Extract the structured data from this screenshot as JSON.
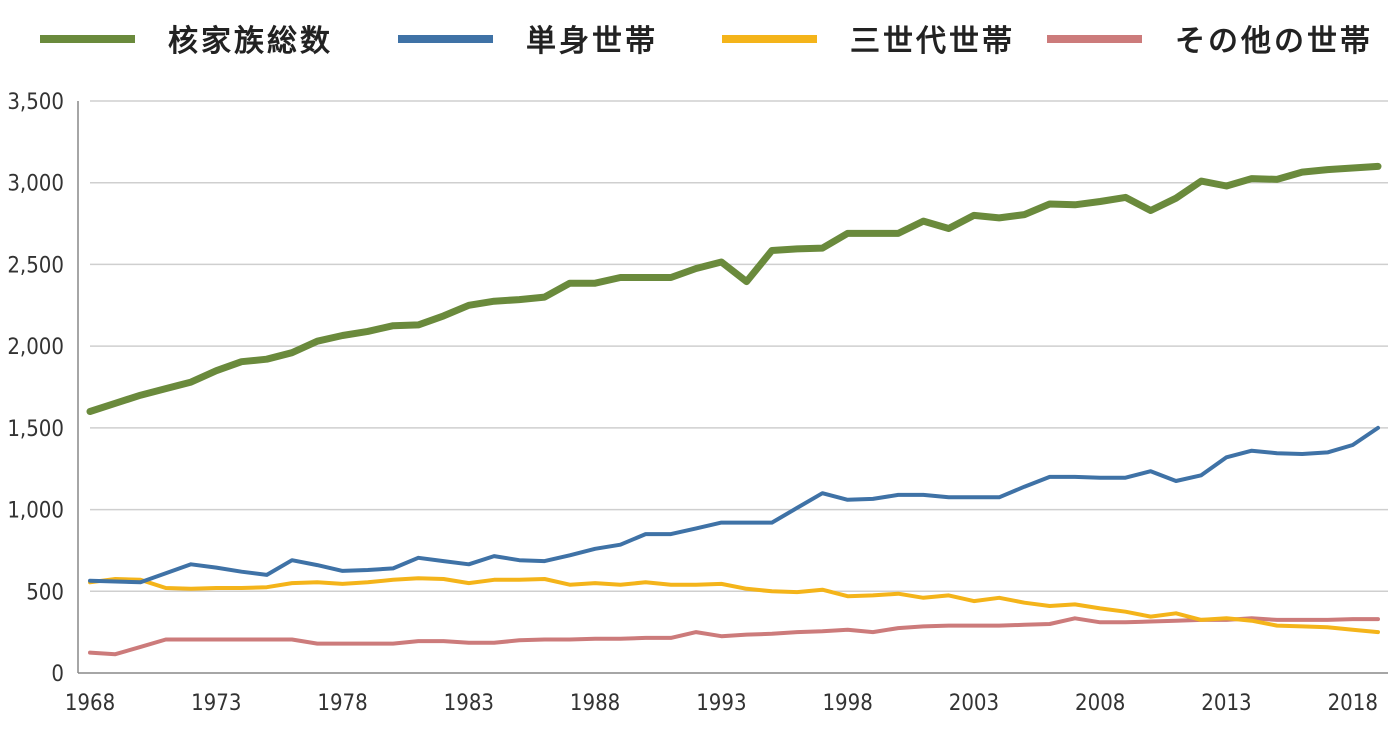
{
  "chart_data": {
    "type": "line",
    "ylim": [
      0,
      3500
    ],
    "yticks": [
      0,
      500,
      1000,
      1500,
      2000,
      2500,
      3000,
      3500
    ],
    "ytick_labels": [
      "0",
      "500",
      "1,000",
      "1,500",
      "2,000",
      "2,500",
      "3,000",
      "3,500"
    ],
    "xlim": [
      1968,
      2019
    ],
    "xticks": [
      1968,
      1973,
      1978,
      1983,
      1988,
      1993,
      1998,
      2003,
      2008,
      2013,
      2018
    ],
    "xtick_labels": [
      "1968",
      "1973",
      "1978",
      "1983",
      "1988",
      "1993",
      "1998",
      "2003",
      "2008",
      "2013",
      "2018"
    ],
    "grid": "horizontal",
    "legend_position": "top",
    "x": [
      1968,
      1969,
      1970,
      1971,
      1972,
      1973,
      1974,
      1975,
      1976,
      1977,
      1978,
      1979,
      1980,
      1981,
      1982,
      1983,
      1984,
      1985,
      1986,
      1987,
      1988,
      1989,
      1990,
      1991,
      1992,
      1993,
      1994,
      1995,
      1996,
      1997,
      1998,
      1999,
      2000,
      2001,
      2002,
      2003,
      2004,
      2005,
      2006,
      2007,
      2008,
      2009,
      2010,
      2011,
      2012,
      2013,
      2014,
      2015,
      2016,
      2017,
      2018,
      2019
    ],
    "series": [
      {
        "name": "核家族総数",
        "color": "#6a8a3c",
        "values": [
          1600,
          1650,
          1700,
          1740,
          1780,
          1850,
          1905,
          1920,
          1960,
          2030,
          2065,
          2090,
          2125,
          2130,
          2185,
          2250,
          2275,
          2285,
          2300,
          2385,
          2385,
          2420,
          2420,
          2420,
          2475,
          2515,
          2395,
          2585,
          2595,
          2600,
          2690,
          2690,
          2690,
          2765,
          2720,
          2800,
          2785,
          2805,
          2870,
          2865,
          2885,
          2910,
          2830,
          2905,
          3010,
          2980,
          3025,
          3020,
          3065,
          3080,
          3090,
          3100
        ]
      },
      {
        "name": "単身世帯",
        "color": "#3f72a6",
        "values": [
          565,
          560,
          555,
          610,
          665,
          645,
          620,
          600,
          690,
          660,
          625,
          630,
          640,
          705,
          685,
          665,
          715,
          690,
          685,
          720,
          760,
          785,
          850,
          850,
          885,
          920,
          920,
          920,
          1010,
          1100,
          1060,
          1065,
          1090,
          1090,
          1075,
          1075,
          1075,
          1140,
          1200,
          1200,
          1195,
          1195,
          1235,
          1175,
          1210,
          1320,
          1360,
          1345,
          1340,
          1350,
          1395,
          1500
        ]
      },
      {
        "name": "三世代世帯",
        "color": "#f4b41a",
        "values": [
          555,
          575,
          570,
          520,
          515,
          520,
          520,
          525,
          550,
          555,
          545,
          555,
          570,
          580,
          575,
          550,
          570,
          570,
          575,
          540,
          550,
          540,
          555,
          540,
          540,
          545,
          515,
          500,
          495,
          510,
          470,
          475,
          485,
          460,
          475,
          440,
          460,
          430,
          410,
          420,
          395,
          375,
          345,
          365,
          325,
          335,
          320,
          290,
          285,
          280,
          265,
          250
        ]
      },
      {
        "name": "その他の世帯",
        "color": "#cc7b7b",
        "values": [
          125,
          115,
          160,
          205,
          205,
          205,
          205,
          205,
          205,
          180,
          180,
          180,
          180,
          195,
          195,
          185,
          185,
          200,
          205,
          205,
          210,
          210,
          215,
          215,
          250,
          225,
          235,
          240,
          250,
          255,
          265,
          250,
          275,
          285,
          290,
          290,
          290,
          295,
          300,
          335,
          310,
          310,
          315,
          320,
          325,
          325,
          335,
          325,
          325,
          325,
          330,
          330
        ]
      }
    ]
  }
}
